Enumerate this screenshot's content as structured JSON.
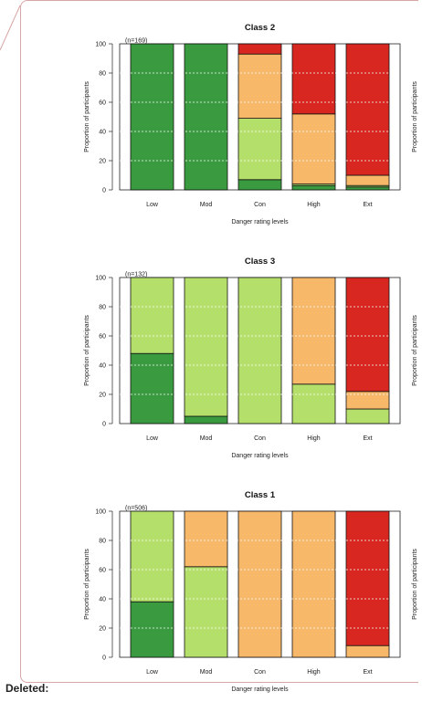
{
  "colors": {
    "Low": "#3a9a3f",
    "Mod": "#b4df6a",
    "Con": "#f8b86a",
    "High": "#d82720",
    "grid": "#ffffff",
    "frame": "#d9a6a6"
  },
  "footer": {
    "label": "Deleted:"
  },
  "chart_data": [
    {
      "type": "bar",
      "stacked": true,
      "title": "Class 2",
      "n_label": "(n=169)",
      "xlabel": "Danger rating levels",
      "ylabel": "Proportion of participants",
      "ylim": [
        0,
        100
      ],
      "yticks": [
        0,
        20,
        40,
        60,
        80,
        100
      ],
      "categories": [
        "Low",
        "Mod",
        "Con",
        "High",
        "Ext"
      ],
      "series": [
        {
          "key": "Low",
          "values": [
            100,
            100,
            7,
            3,
            2
          ]
        },
        {
          "key": "Mod",
          "values": [
            0,
            0,
            42,
            1,
            1
          ]
        },
        {
          "key": "Con",
          "values": [
            0,
            0,
            44,
            48,
            7
          ]
        },
        {
          "key": "High",
          "values": [
            0,
            0,
            7,
            48,
            90
          ]
        }
      ],
      "right_ylabel": "Proportion of participants"
    },
    {
      "type": "bar",
      "stacked": true,
      "title": "Class 3",
      "n_label": "(n=132)",
      "xlabel": "Danger rating levels",
      "ylabel": "Proportion of participants",
      "ylim": [
        0,
        100
      ],
      "yticks": [
        0,
        20,
        40,
        60,
        80,
        100
      ],
      "categories": [
        "Low",
        "Mod",
        "Con",
        "High",
        "Ext"
      ],
      "series": [
        {
          "key": "Low",
          "values": [
            48,
            5,
            0,
            0,
            0
          ]
        },
        {
          "key": "Mod",
          "values": [
            52,
            95,
            100,
            27,
            10
          ]
        },
        {
          "key": "Con",
          "values": [
            0,
            0,
            0,
            73,
            12
          ]
        },
        {
          "key": "High",
          "values": [
            0,
            0,
            0,
            0,
            78
          ]
        }
      ],
      "right_ylabel": "Proportion of participants"
    },
    {
      "type": "bar",
      "stacked": true,
      "title": "Class 1",
      "n_label": "(n=506)",
      "xlabel": "Danger rating levels",
      "ylabel": "Proportion of participants",
      "ylim": [
        0,
        100
      ],
      "yticks": [
        0,
        20,
        40,
        60,
        80,
        100
      ],
      "categories": [
        "Low",
        "Mod",
        "Con",
        "High",
        "Ext"
      ],
      "series": [
        {
          "key": "Low",
          "values": [
            38,
            0,
            0,
            0,
            0
          ]
        },
        {
          "key": "Mod",
          "values": [
            62,
            62,
            0,
            0,
            0
          ]
        },
        {
          "key": "Con",
          "values": [
            0,
            38,
            100,
            100,
            8
          ]
        },
        {
          "key": "High",
          "values": [
            0,
            0,
            0,
            0,
            92
          ]
        }
      ],
      "right_ylabel": "Proportion of participants"
    }
  ]
}
